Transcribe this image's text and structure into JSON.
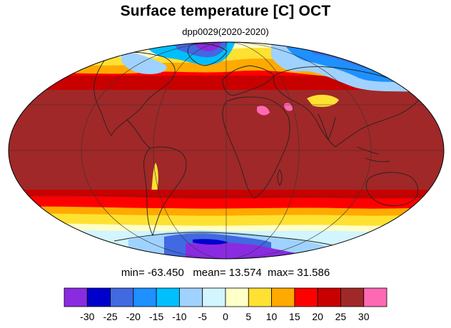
{
  "title": "Surface temperature [C] OCT",
  "subtitle": "dpp0029(2020-2020)",
  "stats": {
    "min_label": "min=",
    "min": "-63.450",
    "mean_label": "mean=",
    "mean": "13.574",
    "max_label": "max=",
    "max": "31.586"
  },
  "colorbar": {
    "labels": [
      "-30",
      "-25",
      "-20",
      "-15",
      "-10",
      "-5",
      "0",
      "5",
      "10",
      "15",
      "20",
      "25",
      "30"
    ],
    "colors": [
      "#8a2be2",
      "#0000cd",
      "#4169e1",
      "#1e90ff",
      "#00bfff",
      "#a0d2ff",
      "#d2f5ff",
      "#ffffc8",
      "#ffe132",
      "#ffaa00",
      "#ff0000",
      "#c80000",
      "#a02828",
      "#ff69b4"
    ]
  },
  "projection": "mollweide",
  "palette": {
    "tropics": "#a02828",
    "warm": "#c80000",
    "mid": "#ff0000",
    "orange": "#ffaa00",
    "yellow": "#ffe132",
    "cream": "#ffffc8",
    "ice": "#d2f5ff",
    "lightblue": "#a0d2ff",
    "sky": "#00bfff",
    "blue": "#1e90ff",
    "royal": "#4169e1",
    "navy": "#0000cd",
    "violet": "#8a2be2",
    "pink": "#ff69b4"
  }
}
